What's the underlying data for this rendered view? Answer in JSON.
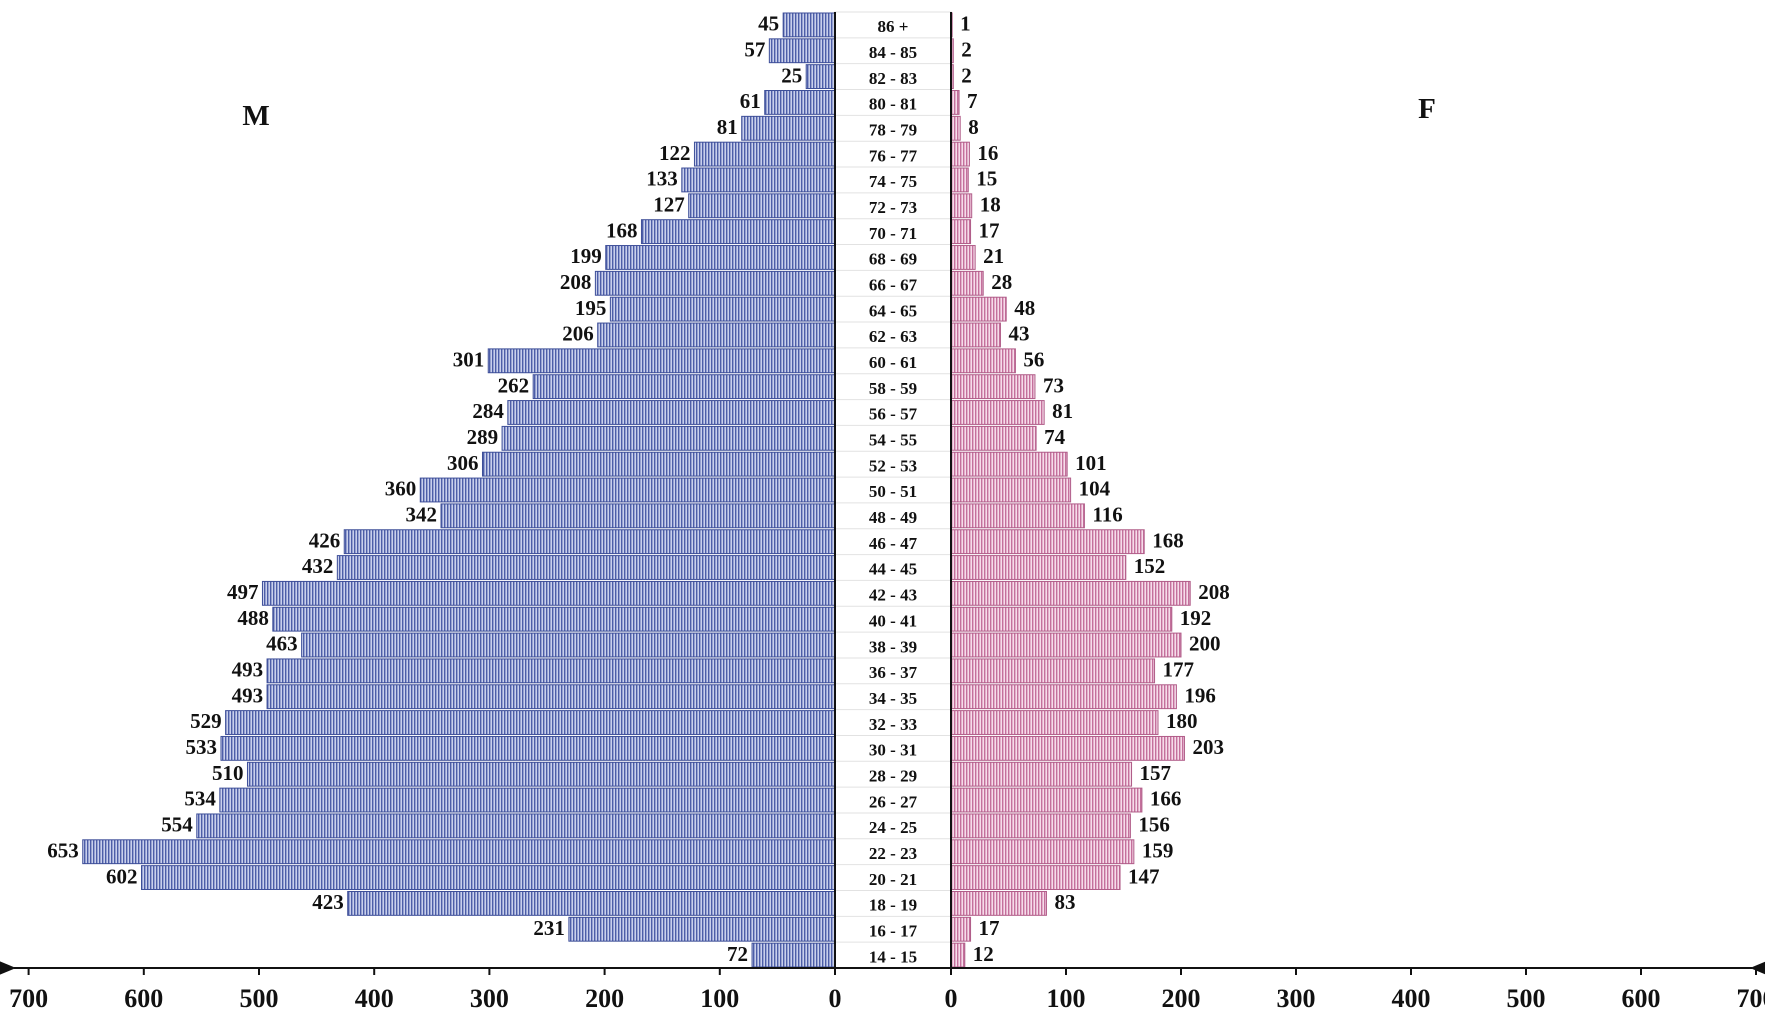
{
  "chart_data": {
    "type": "bar",
    "orientation": "horizontal",
    "layout": "population-pyramid",
    "categories": [
      "86 +",
      "84 - 85",
      "82 - 83",
      "80 - 81",
      "78 - 79",
      "76 - 77",
      "74 - 75",
      "72 - 73",
      "70 - 71",
      "68 - 69",
      "66 - 67",
      "64 - 65",
      "62 - 63",
      "60 - 61",
      "58 - 59",
      "56 - 57",
      "54 - 55",
      "52 - 53",
      "50 - 51",
      "48 - 49",
      "46 - 47",
      "44 - 45",
      "42 - 43",
      "40 - 41",
      "38 - 39",
      "36 - 37",
      "34 - 35",
      "32 - 33",
      "30 - 31",
      "28 - 29",
      "26 - 27",
      "24 - 25",
      "22 - 23",
      "20 - 21",
      "18 - 19",
      "16 - 17",
      "14 - 15"
    ],
    "series": [
      {
        "name": "M",
        "side": "left",
        "color": "#8a9ad0",
        "values": [
          45,
          57,
          25,
          61,
          81,
          122,
          133,
          127,
          168,
          199,
          208,
          195,
          206,
          301,
          262,
          284,
          289,
          306,
          360,
          342,
          426,
          432,
          497,
          488,
          463,
          493,
          493,
          529,
          533,
          510,
          534,
          554,
          653,
          602,
          423,
          231,
          72
        ]
      },
      {
        "name": "F",
        "side": "right",
        "color": "#e6a8c8",
        "values": [
          1,
          2,
          2,
          7,
          8,
          16,
          15,
          18,
          17,
          21,
          28,
          48,
          43,
          56,
          73,
          81,
          74,
          101,
          104,
          116,
          168,
          152,
          208,
          192,
          200,
          177,
          196,
          180,
          203,
          157,
          166,
          156,
          159,
          147,
          83,
          17,
          12
        ]
      }
    ],
    "x_ticks_left": [
      "700",
      "600",
      "500",
      "400",
      "300",
      "200",
      "100",
      "0"
    ],
    "x_ticks_right": [
      "0",
      "100",
      "200",
      "300",
      "400",
      "500",
      "600",
      "700"
    ],
    "xlim": [
      0,
      700
    ],
    "grid": false
  }
}
